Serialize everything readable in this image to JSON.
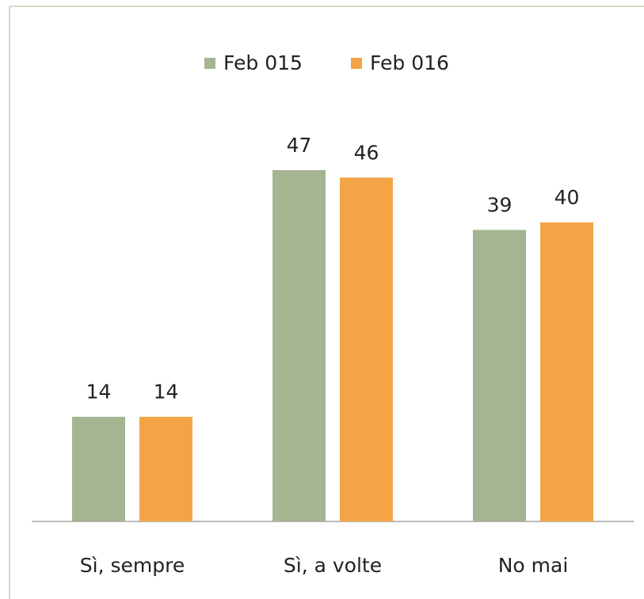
{
  "chart_data": {
    "type": "bar",
    "categories": [
      "Sì, sempre",
      "Sì, a volte",
      "No mai"
    ],
    "series": [
      {
        "name": "Feb 015",
        "color": "#a5b592",
        "values": [
          14,
          47,
          39
        ]
      },
      {
        "name": "Feb 016",
        "color": "#f3a447",
        "values": [
          14,
          46,
          40
        ]
      }
    ],
    "legend": "top"
  }
}
